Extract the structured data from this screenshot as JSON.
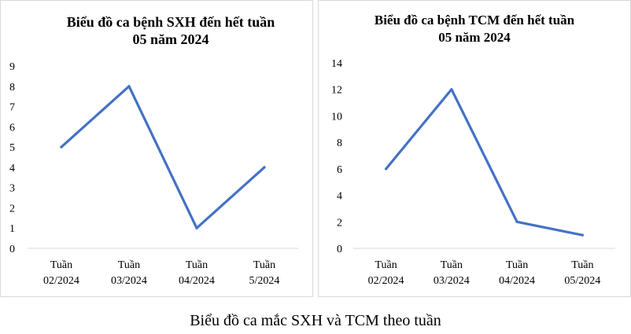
{
  "chart_data": [
    {
      "type": "line",
      "title_lines": [
        "Biểu đồ ca bệnh SXH đến hết tuần",
        "05 năm 2024"
      ],
      "categories": [
        [
          "Tuần",
          "02/2024"
        ],
        [
          "Tuần",
          "03/2024"
        ],
        [
          "Tuần",
          "04/2024"
        ],
        [
          "Tuần",
          "5/2024"
        ]
      ],
      "values": [
        5,
        8,
        1,
        4
      ],
      "ylim": [
        0,
        9
      ],
      "yticks": [
        "0",
        "1",
        "2",
        "3",
        "4",
        "5",
        "6",
        "7",
        "8",
        "9"
      ],
      "grid": false,
      "line_color": "#4472c4"
    },
    {
      "type": "line",
      "title_lines": [
        "Biểu đồ ca bệnh TCM đến hết tuần",
        "05 năm 2024"
      ],
      "categories": [
        [
          "Tuần",
          "02/2024"
        ],
        [
          "Tuần",
          "03/2024"
        ],
        [
          "Tuần",
          "04/2024"
        ],
        [
          "Tuần",
          "05/2024"
        ]
      ],
      "values": [
        6,
        12,
        2,
        1
      ],
      "ylim": [
        0,
        14
      ],
      "yticks": [
        "0",
        "2",
        "4",
        "6",
        "8",
        "10",
        "12",
        "14"
      ],
      "grid": false,
      "line_color": "#4472c4"
    }
  ],
  "caption": "Biểu đồ ca mắc SXH và TCM theo tuần"
}
